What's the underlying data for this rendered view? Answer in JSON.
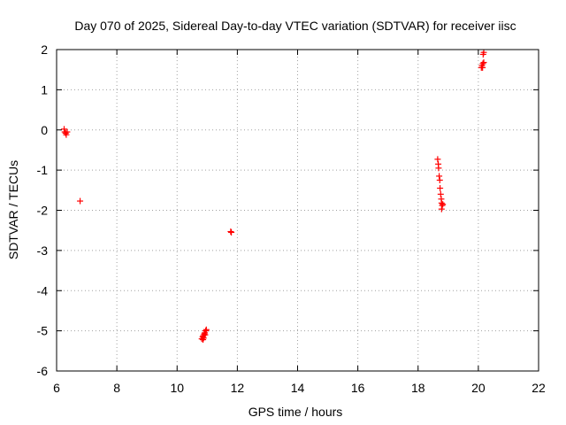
{
  "chart_data": {
    "type": "scatter",
    "title": "Day 070 of 2025, Sidereal Day-to-day VTEC variation (SDTVAR) for receiver iisc",
    "xlabel": "GPS time / hours",
    "ylabel": "SDTVAR / TECUs",
    "xlim": [
      6,
      22
    ],
    "ylim": [
      -6,
      2
    ],
    "xticks": [
      6,
      8,
      10,
      12,
      14,
      16,
      18,
      20,
      22
    ],
    "yticks": [
      -6,
      -5,
      -4,
      -3,
      -2,
      -1,
      0,
      1,
      2
    ],
    "grid": true,
    "marker": "+",
    "color": "#ff0000",
    "series": [
      {
        "name": "SDTVAR",
        "points": [
          [
            6.25,
            0.02
          ],
          [
            6.27,
            -0.05
          ],
          [
            6.3,
            -0.08
          ],
          [
            6.32,
            -0.12
          ],
          [
            6.35,
            -0.05
          ],
          [
            6.78,
            -1.77
          ],
          [
            10.82,
            -5.2
          ],
          [
            10.85,
            -5.15
          ],
          [
            10.87,
            -5.12
          ],
          [
            10.9,
            -5.08
          ],
          [
            10.88,
            -5.18
          ],
          [
            10.92,
            -5.05
          ],
          [
            10.95,
            -5.0
          ],
          [
            10.97,
            -4.97
          ],
          [
            10.93,
            -5.1
          ],
          [
            10.86,
            -5.22
          ],
          [
            11.78,
            -2.53
          ],
          [
            11.8,
            -2.55
          ],
          [
            18.65,
            -0.73
          ],
          [
            18.67,
            -0.85
          ],
          [
            18.68,
            -0.95
          ],
          [
            18.7,
            -1.15
          ],
          [
            18.72,
            -1.25
          ],
          [
            18.73,
            -1.45
          ],
          [
            18.75,
            -1.6
          ],
          [
            18.77,
            -1.72
          ],
          [
            18.78,
            -1.82
          ],
          [
            18.8,
            -1.88
          ],
          [
            18.78,
            -1.97
          ],
          [
            18.82,
            -1.85
          ],
          [
            20.1,
            1.55
          ],
          [
            20.12,
            1.6
          ],
          [
            20.15,
            1.65
          ],
          [
            20.18,
            1.68
          ],
          [
            20.14,
            1.55
          ],
          [
            20.16,
            1.88
          ],
          [
            20.18,
            1.93
          ]
        ]
      }
    ]
  }
}
